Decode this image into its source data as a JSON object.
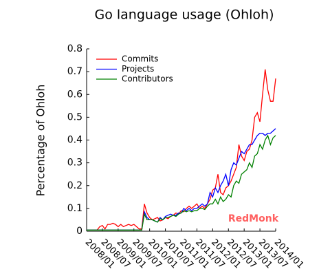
{
  "chart_data": {
    "type": "line",
    "title": "Go language usage (Ohloh)",
    "ylabel": "Percentage of Ohloh",
    "watermark": "RedMonk",
    "x": [
      "2008/01",
      "2008/02",
      "2008/03",
      "2008/04",
      "2008/05",
      "2008/06",
      "2008/07",
      "2008/08",
      "2008/09",
      "2008/10",
      "2008/11",
      "2008/12",
      "2009/01",
      "2009/02",
      "2009/03",
      "2009/04",
      "2009/05",
      "2009/06",
      "2009/07",
      "2009/08",
      "2009/09",
      "2009/10",
      "2009/11",
      "2009/12",
      "2010/01",
      "2010/02",
      "2010/03",
      "2010/04",
      "2010/05",
      "2010/06",
      "2010/07",
      "2010/08",
      "2010/09",
      "2010/10",
      "2010/11",
      "2010/12",
      "2011/01",
      "2011/02",
      "2011/03",
      "2011/04",
      "2011/05",
      "2011/06",
      "2011/07",
      "2011/08",
      "2011/09",
      "2011/10",
      "2011/11",
      "2011/12",
      "2012/01",
      "2012/02",
      "2012/03",
      "2012/04",
      "2012/05",
      "2012/06",
      "2012/07",
      "2012/08",
      "2012/09",
      "2012/10",
      "2012/11",
      "2012/12",
      "2013/01",
      "2013/02",
      "2013/03",
      "2013/04",
      "2013/05",
      "2013/06",
      "2013/07",
      "2013/08",
      "2013/09",
      "2013/10",
      "2013/11",
      "2013/12",
      "2014/01"
    ],
    "series": [
      {
        "name": "Commits",
        "color": "#ff0000",
        "values": [
          0.005,
          0.005,
          0.005,
          0.005,
          0.005,
          0.02,
          0.025,
          0.01,
          0.03,
          0.03,
          0.035,
          0.03,
          0.02,
          0.03,
          0.02,
          0.025,
          0.03,
          0.025,
          0.03,
          0.02,
          0.01,
          0.01,
          0.12,
          0.08,
          0.06,
          0.05,
          0.055,
          0.06,
          0.045,
          0.05,
          0.06,
          0.055,
          0.065,
          0.07,
          0.08,
          0.075,
          0.09,
          0.085,
          0.1,
          0.11,
          0.1,
          0.11,
          0.12,
          0.1,
          0.11,
          0.1,
          0.12,
          0.14,
          0.18,
          0.19,
          0.25,
          0.17,
          0.16,
          0.19,
          0.2,
          0.22,
          0.25,
          0.28,
          0.38,
          0.33,
          0.31,
          0.35,
          0.36,
          0.4,
          0.5,
          0.52,
          0.48,
          0.6,
          0.71,
          0.62,
          0.57,
          0.57,
          0.67
        ]
      },
      {
        "name": "Projects",
        "color": "#0000ff",
        "values": [
          0.005,
          0.005,
          0.005,
          0.005,
          0.005,
          0.005,
          0.005,
          0.005,
          0.005,
          0.005,
          0.005,
          0.005,
          0.005,
          0.005,
          0.005,
          0.005,
          0.005,
          0.005,
          0.005,
          0.005,
          0.005,
          0.005,
          0.085,
          0.06,
          0.05,
          0.05,
          0.045,
          0.04,
          0.06,
          0.05,
          0.065,
          0.07,
          0.075,
          0.07,
          0.07,
          0.08,
          0.08,
          0.1,
          0.09,
          0.1,
          0.09,
          0.1,
          0.1,
          0.11,
          0.12,
          0.11,
          0.12,
          0.17,
          0.15,
          0.19,
          0.17,
          0.2,
          0.22,
          0.25,
          0.2,
          0.27,
          0.3,
          0.29,
          0.32,
          0.35,
          0.34,
          0.36,
          0.38,
          0.38,
          0.4,
          0.42,
          0.43,
          0.43,
          0.42,
          0.43,
          0.43,
          0.44,
          0.45
        ]
      },
      {
        "name": "Contributors",
        "color": "#008000",
        "values": [
          0.005,
          0.005,
          0.005,
          0.005,
          0.005,
          0.005,
          0.005,
          0.005,
          0.005,
          0.005,
          0.005,
          0.005,
          0.005,
          0.005,
          0.005,
          0.005,
          0.005,
          0.005,
          0.005,
          0.005,
          0.005,
          0.005,
          0.075,
          0.05,
          0.05,
          0.05,
          0.045,
          0.04,
          0.055,
          0.05,
          0.06,
          0.06,
          0.065,
          0.07,
          0.065,
          0.075,
          0.08,
          0.09,
          0.085,
          0.09,
          0.085,
          0.09,
          0.09,
          0.1,
          0.1,
          0.095,
          0.11,
          0.12,
          0.12,
          0.14,
          0.12,
          0.15,
          0.13,
          0.14,
          0.16,
          0.15,
          0.2,
          0.22,
          0.21,
          0.25,
          0.26,
          0.27,
          0.3,
          0.28,
          0.33,
          0.34,
          0.38,
          0.36,
          0.4,
          0.42,
          0.38,
          0.41,
          0.42
        ]
      }
    ],
    "xlim": [
      "2008/01",
      "2014/01"
    ],
    "xticks": [
      "2008/01",
      "2008/07",
      "2009/01",
      "2009/07",
      "2010/01",
      "2010/07",
      "2011/01",
      "2011/07",
      "2012/01",
      "2012/07",
      "2013/01",
      "2013/07",
      "2014/01"
    ],
    "ylim": [
      0,
      0.8
    ],
    "yticks": [
      0,
      0.1,
      0.2,
      0.3,
      0.4,
      0.5,
      0.6,
      0.7,
      0.8
    ],
    "legend": "upper left",
    "grid": false
  }
}
